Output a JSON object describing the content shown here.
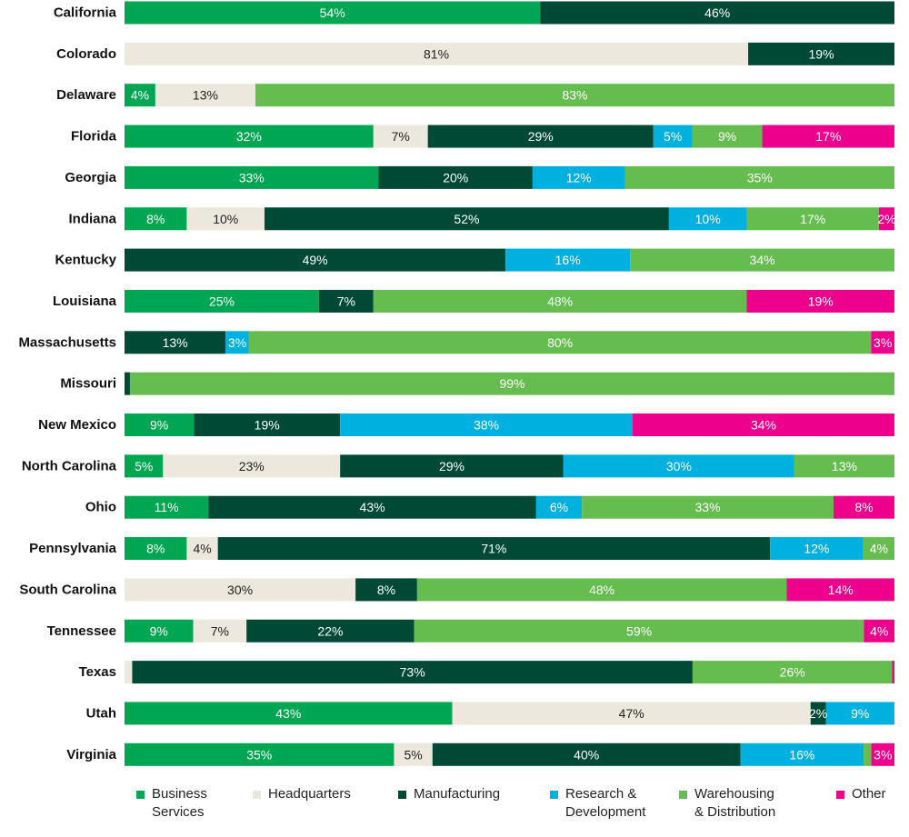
{
  "chart_data": {
    "type": "bar",
    "orientation": "horizontal",
    "stacked": true,
    "normalized": true,
    "xlim": [
      0,
      100
    ],
    "grid": false,
    "legend_position": "bottom",
    "categories": [
      "California",
      "Colorado",
      "Delaware",
      "Florida",
      "Georgia",
      "Indiana",
      "Kentucky",
      "Louisiana",
      "Massachusetts",
      "Missouri",
      "New Mexico",
      "North Carolina",
      "Ohio",
      "Pennsylvania",
      "South Carolina",
      "Tennessee",
      "Texas",
      "Utah",
      "Virginia"
    ],
    "series": [
      {
        "name": "Business Services",
        "legend_lines": [
          "Business",
          "Services"
        ],
        "color": "#00a651",
        "label_color": "#ffffff",
        "values": [
          54,
          0,
          4,
          32,
          33,
          8,
          0,
          25,
          0,
          0,
          9,
          5,
          11,
          8,
          0,
          9,
          0,
          43,
          35
        ],
        "labels": [
          "54%",
          "",
          "4%",
          "32%",
          "33%",
          "8%",
          "",
          "25%",
          "",
          "",
          "9%",
          "5%",
          "11%",
          "8%",
          "",
          "9%",
          "",
          "43%",
          "35%"
        ]
      },
      {
        "name": "Headquarters",
        "legend_lines": [
          "Headquarters"
        ],
        "color": "#ede8dd",
        "label_color": "#222222",
        "values": [
          0,
          81,
          13,
          7,
          0,
          10,
          0,
          0,
          0,
          0,
          0,
          23,
          0,
          4,
          30,
          7,
          1,
          47,
          5
        ],
        "labels": [
          "",
          "81%",
          "13%",
          "7%",
          "",
          "10%",
          "",
          "",
          "",
          "",
          "",
          "23%",
          "",
          "4%",
          "30%",
          "7%",
          "",
          "47%",
          "5%"
        ]
      },
      {
        "name": "Manufacturing",
        "legend_lines": [
          "Manufacturing"
        ],
        "color": "#004a35",
        "label_color": "#ffffff",
        "values": [
          46,
          19,
          0,
          29,
          20,
          52,
          49,
          7,
          13,
          0.7,
          19,
          29,
          43,
          71,
          8,
          22,
          73,
          2,
          40
        ],
        "labels": [
          "46%",
          "19%",
          "",
          "29%",
          "20%",
          "52%",
          "49%",
          "7%",
          "13%",
          "",
          "19%",
          "29%",
          "43%",
          "71%",
          "8%",
          "22%",
          "73%",
          "2%",
          "40%"
        ]
      },
      {
        "name": "Research & Development",
        "legend_lines": [
          "Research &",
          "Development"
        ],
        "color": "#00b0df",
        "label_color": "#ffffff",
        "values": [
          0,
          0,
          0,
          5,
          12,
          10,
          16,
          0,
          3,
          0,
          38,
          30,
          6,
          12,
          0,
          0,
          0,
          9,
          16
        ],
        "labels": [
          "",
          "",
          "",
          "5%",
          "12%",
          "10%",
          "16%",
          "",
          "3%",
          "",
          "38%",
          "30%",
          "6%",
          "12%",
          "",
          "",
          "",
          "9%",
          "16%"
        ]
      },
      {
        "name": "Warehousing & Distribution",
        "legend_lines": [
          "Warehousing",
          "& Distribution"
        ],
        "color": "#66bd4f",
        "label_color": "#ffffff",
        "values": [
          0,
          0,
          83,
          9,
          35,
          17,
          34,
          48,
          80,
          99,
          0,
          13,
          33,
          4,
          48,
          59,
          26,
          0,
          1
        ],
        "labels": [
          "",
          "",
          "83%",
          "9%",
          "35%",
          "17%",
          "34%",
          "48%",
          "80%",
          "99%",
          "",
          "13%",
          "33%",
          "4%",
          "48%",
          "59%",
          "26%",
          "",
          ""
        ]
      },
      {
        "name": "Other",
        "legend_lines": [
          "Other"
        ],
        "color": "#ec008c",
        "label_color": "#ffffff",
        "values": [
          0,
          0,
          0,
          17,
          0,
          2,
          0,
          19,
          3,
          0,
          34,
          0,
          8,
          0,
          14,
          4,
          0.3,
          0,
          3
        ],
        "labels": [
          "",
          "",
          "",
          "17%",
          "",
          "2%",
          "",
          "19%",
          "3%",
          "",
          "34%",
          "",
          "8%",
          "",
          "14%",
          "4%",
          "",
          "",
          "3%"
        ]
      }
    ]
  }
}
